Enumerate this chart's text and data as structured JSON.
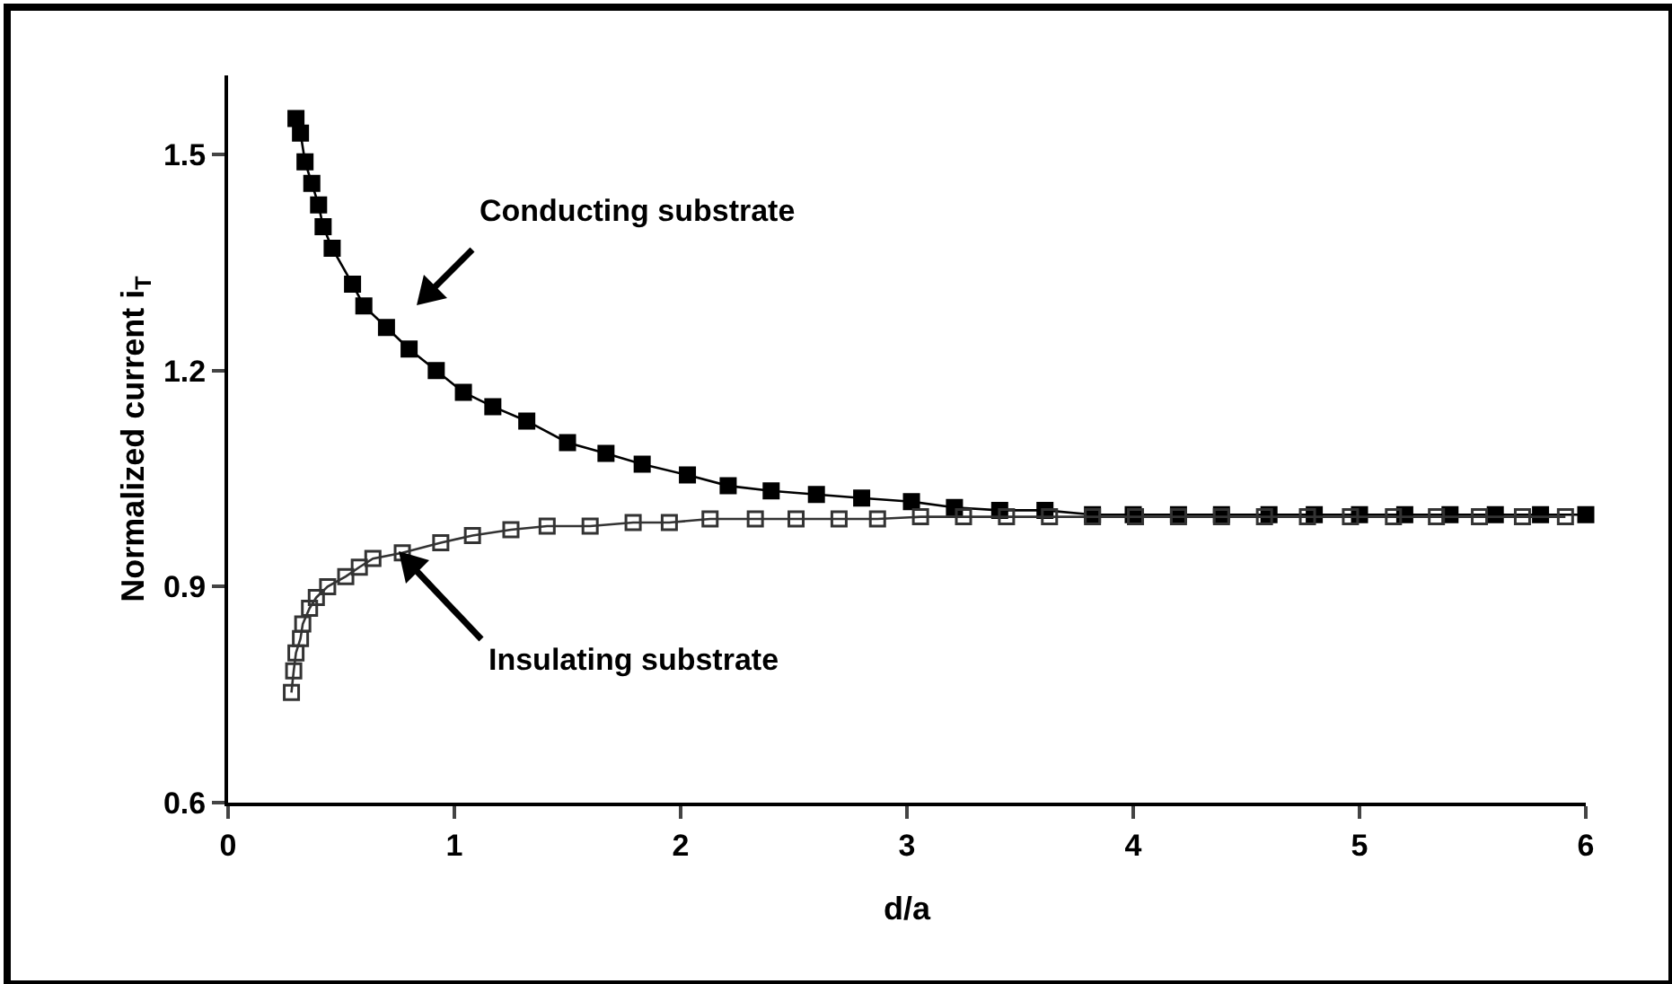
{
  "chart_data": {
    "type": "line",
    "xlabel": "d/a",
    "ylabel": "Normalized current i$_{T}$",
    "xlim": [
      0,
      6
    ],
    "ylim": [
      0.6,
      1.61
    ],
    "xticks": [
      0,
      1,
      2,
      3,
      4,
      5,
      6
    ],
    "yticks": [
      0.6,
      0.9,
      1.2,
      1.5
    ],
    "grid": false,
    "marker": "square",
    "line_style": "solid",
    "series": [
      {
        "color": "#000000",
        "x": [
          0.3,
          0.32,
          0.34,
          0.37,
          0.4,
          0.42,
          0.46,
          0.55,
          0.6,
          0.7,
          0.8,
          0.92,
          1.04,
          1.17,
          1.32,
          1.5,
          1.67,
          1.83,
          2.03,
          2.21,
          2.4,
          2.6,
          2.8,
          3.02,
          3.21,
          3.41,
          3.61,
          3.82,
          4.0,
          4.2,
          4.39,
          4.6,
          4.8,
          5.0,
          5.2,
          5.4,
          5.6,
          5.8,
          6.0
        ],
        "values": [
          1.55,
          1.53,
          1.49,
          1.46,
          1.43,
          1.4,
          1.37,
          1.32,
          1.29,
          1.26,
          1.23,
          1.2,
          1.17,
          1.15,
          1.13,
          1.1,
          1.085,
          1.07,
          1.055,
          1.04,
          1.033,
          1.028,
          1.023,
          1.018,
          1.01,
          1.006,
          1.006,
          1.0,
          1.0,
          1.0,
          1.0,
          1.0,
          1.0,
          1.0,
          1.0,
          1.0,
          1.0,
          1.0,
          1.0
        ]
      },
      {
        "color": "#333333",
        "marker": "square-open",
        "x": [
          0.28,
          0.29,
          0.3,
          0.32,
          0.33,
          0.36,
          0.39,
          0.44,
          0.52,
          0.58,
          0.64,
          0.77,
          0.94,
          1.08,
          1.25,
          1.41,
          1.6,
          1.79,
          1.95,
          2.13,
          2.33,
          2.51,
          2.7,
          2.87,
          3.06,
          3.25,
          3.44,
          3.63,
          3.82,
          4.01,
          4.2,
          4.39,
          4.58,
          4.77,
          4.96,
          5.15,
          5.34,
          5.53,
          5.72,
          5.91
        ],
        "values": [
          0.753,
          0.783,
          0.808,
          0.828,
          0.848,
          0.87,
          0.885,
          0.9,
          0.914,
          0.927,
          0.939,
          0.947,
          0.961,
          0.971,
          0.979,
          0.984,
          0.984,
          0.989,
          0.989,
          0.994,
          0.994,
          0.994,
          0.994,
          0.994,
          0.997,
          0.997,
          0.997,
          0.997,
          0.997,
          0.997,
          0.997,
          0.997,
          0.997,
          0.997,
          0.997,
          0.997,
          0.997,
          0.997,
          0.997,
          0.997
        ]
      }
    ],
    "annotations": [
      "Conducting substrate",
      "Insulating substrate"
    ]
  }
}
